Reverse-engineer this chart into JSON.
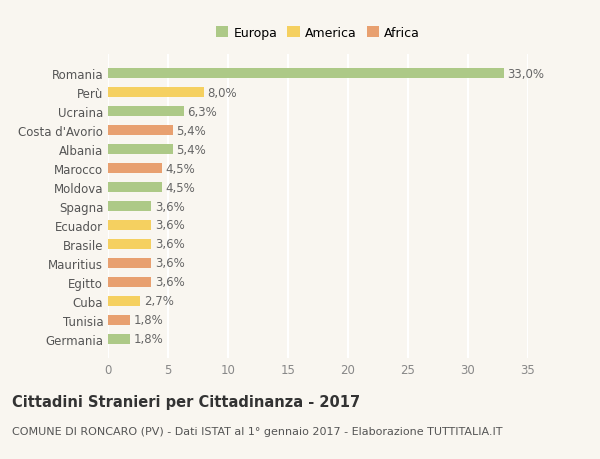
{
  "countries": [
    "Romania",
    "Perù",
    "Ucraina",
    "Costa d'Avorio",
    "Albania",
    "Marocco",
    "Moldova",
    "Spagna",
    "Ecuador",
    "Brasile",
    "Mauritius",
    "Egitto",
    "Cuba",
    "Tunisia",
    "Germania"
  ],
  "values": [
    33.0,
    8.0,
    6.3,
    5.4,
    5.4,
    4.5,
    4.5,
    3.6,
    3.6,
    3.6,
    3.6,
    3.6,
    2.7,
    1.8,
    1.8
  ],
  "labels": [
    "33,0%",
    "8,0%",
    "6,3%",
    "5,4%",
    "5,4%",
    "4,5%",
    "4,5%",
    "3,6%",
    "3,6%",
    "3,6%",
    "3,6%",
    "3,6%",
    "2,7%",
    "1,8%",
    "1,8%"
  ],
  "categories": [
    "Europa",
    "America",
    "Africa"
  ],
  "continent": [
    "Europa",
    "America",
    "Europa",
    "Africa",
    "Europa",
    "Africa",
    "Europa",
    "Europa",
    "America",
    "America",
    "Africa",
    "Africa",
    "America",
    "Africa",
    "Europa"
  ],
  "colors": {
    "Europa": "#adc987",
    "America": "#f5d060",
    "Africa": "#e8a070"
  },
  "title": "Cittadini Stranieri per Cittadinanza - 2017",
  "subtitle": "COMUNE DI RONCARO (PV) - Dati ISTAT al 1° gennaio 2017 - Elaborazione TUTTITALIA.IT",
  "xlim": [
    0,
    35
  ],
  "xticks": [
    0,
    5,
    10,
    15,
    20,
    25,
    30,
    35
  ],
  "background_color": "#f9f6f0",
  "grid_color": "#ffffff",
  "bar_height": 0.55,
  "label_fontsize": 8.5,
  "ytick_fontsize": 8.5,
  "xtick_fontsize": 8.5,
  "title_fontsize": 10.5,
  "subtitle_fontsize": 8.0
}
